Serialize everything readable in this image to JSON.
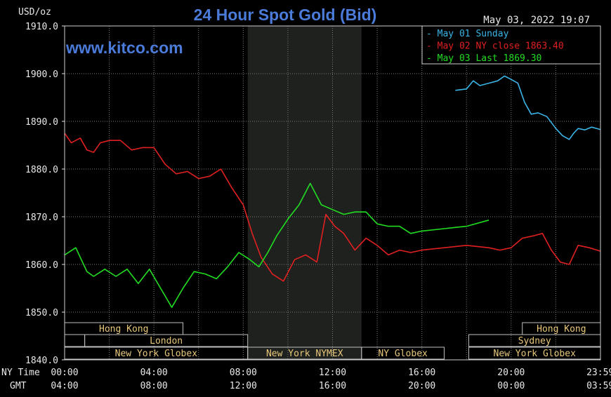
{
  "chart_data": {
    "type": "line",
    "title": "24 Hour Spot Gold (Bid)",
    "watermark": "www.kitco.com",
    "timestamp": "May 03, 2022 19:07",
    "ylabel": "USD/oz",
    "ylim": [
      1840,
      1910
    ],
    "y_ticks": [
      "1910.0",
      "1900.0",
      "1890.0",
      "1880.0",
      "1870.0",
      "1860.0",
      "1850.0",
      "1840.0"
    ],
    "x_row_labels": [
      "NY Time",
      "GMT"
    ],
    "x_ticks_ny": [
      "00:00",
      "04:00",
      "08:00",
      "12:00",
      "16:00",
      "20:00",
      "23:59"
    ],
    "x_ticks_gmt": [
      "04:00",
      "08:00",
      "12:00",
      "16:00",
      "20:00",
      "00:00",
      "03:59"
    ],
    "xlim": [
      0,
      24
    ],
    "grid": true,
    "legend_position": "top-right",
    "nymex_shaded_range": [
      8.2,
      13.3
    ],
    "sessions": [
      {
        "name": "Hong Kong",
        "start": 0,
        "end": 5.3,
        "row": 1
      },
      {
        "name": "Hong Kong",
        "start": 20.5,
        "end": 24,
        "row": 1
      },
      {
        "name": "London",
        "start": 0,
        "end": 0.9,
        "row": 2
      },
      {
        "name": "London",
        "start": 0.9,
        "end": 8.2,
        "row": 2
      },
      {
        "name": "Sydney",
        "start": 18.1,
        "end": 24,
        "row": 2
      },
      {
        "name": "New York Globex",
        "start": 0,
        "end": 8.2,
        "row": 3
      },
      {
        "name": "New York NYMEX",
        "start": 8.2,
        "end": 13.3,
        "row": 3
      },
      {
        "name": "NY Globex",
        "start": 13.3,
        "end": 17.0,
        "row": 3
      },
      {
        "name": "New York Globex",
        "start": 18.1,
        "end": 24,
        "row": 3
      }
    ],
    "series": [
      {
        "name": "May 01 Sunday",
        "color": "#3ab4e6",
        "x": [
          17.5,
          18.0,
          18.3,
          18.6,
          19.0,
          19.4,
          19.7,
          20.0,
          20.3,
          20.6,
          20.9,
          21.2,
          21.6,
          22.0,
          22.3,
          22.6,
          22.8,
          23.0,
          23.3,
          23.6,
          23.99
        ],
        "y": [
          1896.5,
          1896.8,
          1898.5,
          1897.5,
          1898.0,
          1898.5,
          1899.5,
          1898.8,
          1898.0,
          1894.0,
          1891.5,
          1891.8,
          1891.0,
          1888.5,
          1887.0,
          1886.2,
          1887.5,
          1888.5,
          1888.2,
          1888.8,
          1888.3
        ]
      },
      {
        "name": "May 02 NY close 1863.40",
        "color": "#e02020",
        "x": [
          0.0,
          0.3,
          0.7,
          1.0,
          1.3,
          1.6,
          2.0,
          2.5,
          3.0,
          3.5,
          4.0,
          4.5,
          5.0,
          5.5,
          6.0,
          6.5,
          7.0,
          7.5,
          8.0,
          8.4,
          8.8,
          9.3,
          9.8,
          10.3,
          10.8,
          11.3,
          11.7,
          12.1,
          12.5,
          13.0,
          13.5,
          14.0,
          14.5,
          15.0,
          15.5,
          16.0,
          17.0,
          18.0,
          19.0,
          19.5,
          20.0,
          20.5,
          21.0,
          21.4,
          21.8,
          22.2,
          22.6,
          23.0,
          23.5,
          23.99
        ],
        "y": [
          1887.5,
          1885.5,
          1886.5,
          1884.0,
          1883.5,
          1885.5,
          1886.0,
          1886.0,
          1884.0,
          1884.5,
          1884.5,
          1881.0,
          1879.0,
          1879.5,
          1878.0,
          1878.5,
          1880.0,
          1876.0,
          1872.5,
          1866.5,
          1861.5,
          1858.0,
          1856.5,
          1861.0,
          1862.0,
          1860.5,
          1870.5,
          1868.0,
          1866.5,
          1863.0,
          1865.5,
          1864.0,
          1862.0,
          1863.0,
          1862.5,
          1863.0,
          1863.5,
          1864.0,
          1863.5,
          1863.0,
          1863.5,
          1865.5,
          1866.0,
          1866.5,
          1863.0,
          1860.5,
          1860.0,
          1864.0,
          1863.5,
          1862.8
        ]
      },
      {
        "name": "May 03 Last 1869.30",
        "color": "#22dd22",
        "x": [
          0.0,
          0.5,
          1.0,
          1.3,
          1.8,
          2.3,
          2.8,
          3.3,
          3.8,
          4.3,
          4.8,
          5.3,
          5.8,
          6.3,
          6.8,
          7.3,
          7.8,
          8.3,
          8.7,
          9.1,
          9.5,
          10.0,
          10.5,
          11.0,
          11.5,
          12.0,
          12.5,
          13.0,
          13.5,
          14.0,
          14.5,
          15.0,
          15.5,
          16.0,
          17.0,
          18.0,
          19.0
        ],
        "y": [
          1862.0,
          1863.5,
          1858.5,
          1857.5,
          1859.0,
          1857.5,
          1859.0,
          1856.0,
          1859.0,
          1855.0,
          1851.0,
          1855.0,
          1858.5,
          1858.0,
          1857.0,
          1859.5,
          1862.5,
          1861.0,
          1859.5,
          1862.5,
          1866.0,
          1869.5,
          1872.5,
          1877.0,
          1872.5,
          1871.5,
          1870.5,
          1871.0,
          1871.0,
          1868.5,
          1868.0,
          1868.0,
          1866.5,
          1867.0,
          1867.5,
          1868.0,
          1869.3
        ]
      }
    ]
  }
}
